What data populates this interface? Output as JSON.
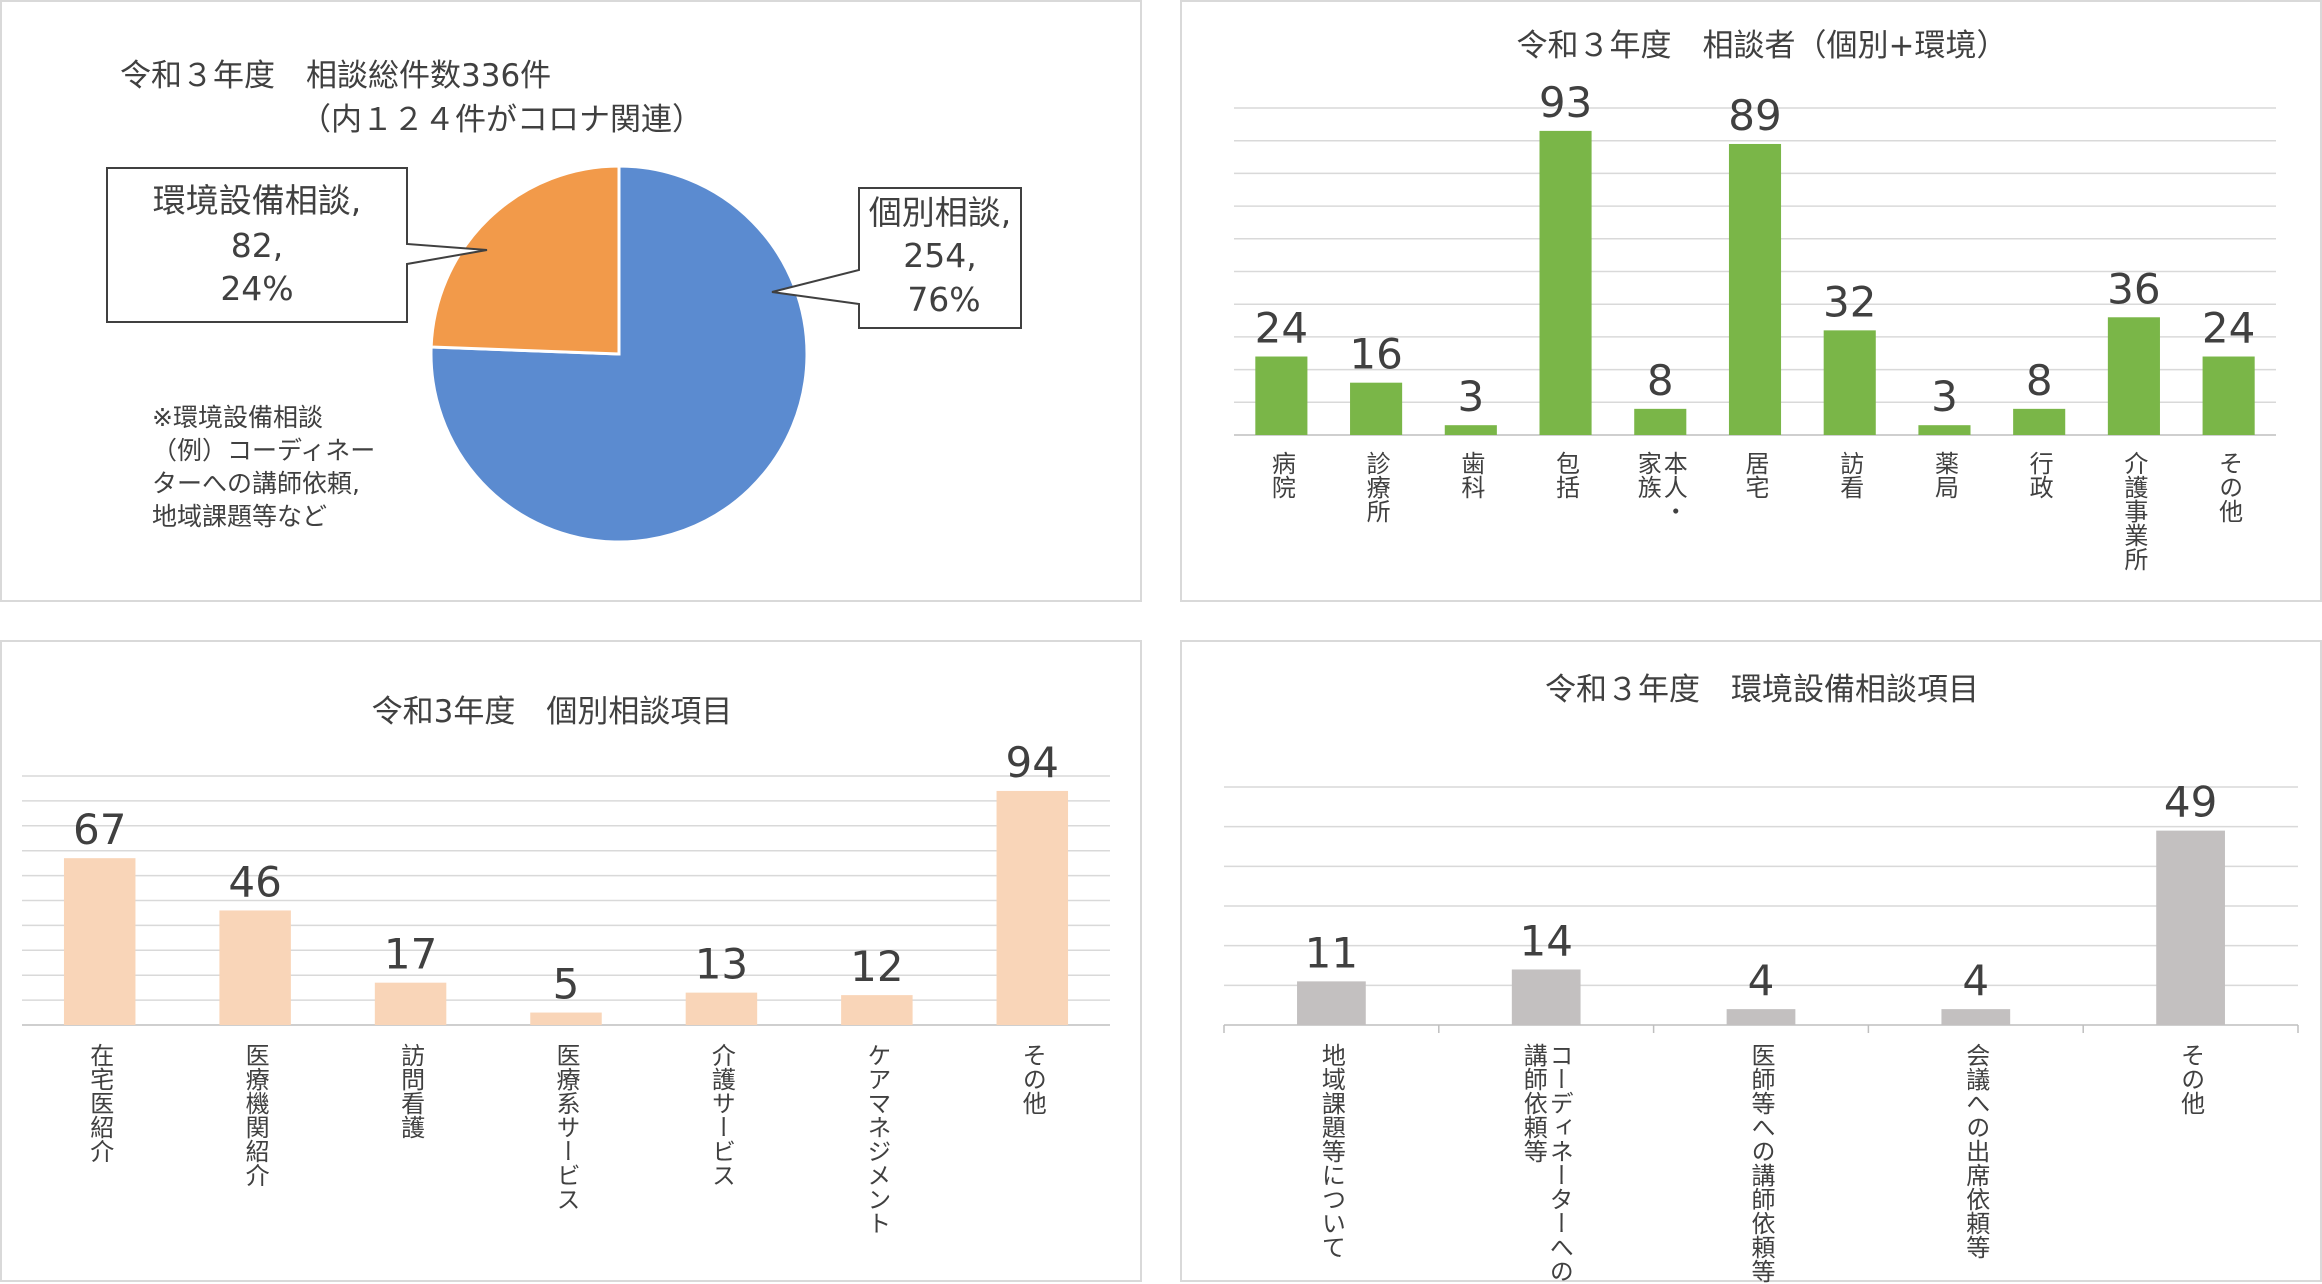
{
  "chart_data": [
    {
      "type": "pie",
      "title": "令和３年度　相談総件数336件",
      "subtitle": "（内１２４件がコロナ関連）",
      "slices": [
        {
          "label": "個別相談",
          "value": 254,
          "percent": "76%",
          "color": "#5b8bd0"
        },
        {
          "label": "環境設備相談",
          "value": 82,
          "percent": "24%",
          "color": "#f29a4a"
        }
      ],
      "note": [
        "※環境設備相談",
        "（例）コーディネー",
        "ターへの講師依頼,",
        "地域課題等など"
      ]
    },
    {
      "type": "bar",
      "title": "令和３年度　相談者（個別+環境）",
      "categories": [
        "病院",
        "診療所",
        "歯科",
        "包括",
        "本人・家族",
        "居宅",
        "訪看",
        "薬局",
        "行政",
        "介護事業所",
        "その他"
      ],
      "category_lines": [
        [
          "病院"
        ],
        [
          "診療所"
        ],
        [
          "歯科"
        ],
        [
          "包括"
        ],
        [
          "本人・",
          "家族"
        ],
        [
          "居宅"
        ],
        [
          "訪看"
        ],
        [
          "薬局"
        ],
        [
          "行政"
        ],
        [
          "介護事業所"
        ],
        [
          "その他"
        ]
      ],
      "values": [
        24,
        16,
        3,
        93,
        8,
        89,
        32,
        3,
        8,
        36,
        24
      ],
      "ylim": [
        0,
        100
      ],
      "color": "#7ab648",
      "grid": true
    },
    {
      "type": "bar",
      "title": "令和3年度　個別相談項目",
      "categories": [
        "在宅医紹介",
        "医療機関紹介",
        "訪問看護",
        "医療系サービス",
        "介護サービス",
        "ケアマネジメント",
        "その他"
      ],
      "category_lines": [
        [
          "在宅医紹介"
        ],
        [
          "医療機関紹介"
        ],
        [
          "訪問看護"
        ],
        [
          "医療系サービス"
        ],
        [
          "介護サービス"
        ],
        [
          "ケアマネジメント"
        ],
        [
          "その他"
        ]
      ],
      "values": [
        67,
        46,
        17,
        5,
        13,
        12,
        94
      ],
      "ylim": [
        0,
        100
      ],
      "color": "#f9d5b8",
      "grid": true
    },
    {
      "type": "bar",
      "title": "令和３年度　環境設備相談項目",
      "categories": [
        "地域課題等について",
        "コーディネーターへの講師依頼等",
        "医師等への講師依頼等",
        "会議への出席依頼等",
        "その他"
      ],
      "category_lines": [
        [
          "地域課題等について"
        ],
        [
          "コーディネーターへの",
          "講師依頼等"
        ],
        [
          "医師等への講師依頼等"
        ],
        [
          "会議への出席依頼等"
        ],
        [
          "その他"
        ]
      ],
      "values": [
        11,
        14,
        4,
        4,
        49
      ],
      "ylim": [
        0,
        60
      ],
      "color": "#c3c0c0",
      "grid": true
    }
  ]
}
